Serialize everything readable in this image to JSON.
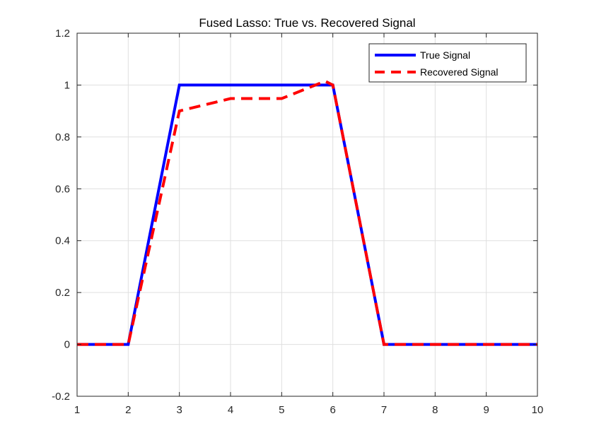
{
  "chart_data": {
    "type": "line",
    "title": "Fused Lasso: True vs. Recovered Signal",
    "xlabel": "",
    "ylabel": "",
    "xlim": [
      1,
      10
    ],
    "ylim": [
      -0.2,
      1.2
    ],
    "xticks": [
      1,
      2,
      3,
      4,
      5,
      6,
      7,
      8,
      9,
      10
    ],
    "yticks": [
      -0.2,
      0,
      0.2,
      0.4,
      0.6,
      0.8,
      1,
      1.2
    ],
    "xtick_labels": [
      "1",
      "2",
      "3",
      "4",
      "5",
      "6",
      "7",
      "8",
      "9",
      "10"
    ],
    "ytick_labels": [
      "-0.2",
      "0",
      "0.2",
      "0.4",
      "0.6",
      "0.8",
      "1",
      "1.2"
    ],
    "grid": true,
    "legend_position": "top-right",
    "series": [
      {
        "name": "True Signal",
        "color": "#0000ff",
        "style": "solid",
        "x": [
          1,
          2,
          3,
          4,
          5,
          6,
          7,
          8,
          9,
          10
        ],
        "y": [
          0,
          0,
          1,
          1,
          1,
          1,
          0,
          0,
          0,
          0
        ]
      },
      {
        "name": "Recovered Signal",
        "color": "#ff0000",
        "style": "dashed",
        "x": [
          1,
          2,
          3,
          4,
          5,
          5.85,
          6,
          7,
          8,
          9,
          10
        ],
        "y": [
          0,
          0,
          0.9,
          0.948,
          0.948,
          1.015,
          1.0,
          0,
          0,
          0,
          0
        ]
      }
    ]
  }
}
